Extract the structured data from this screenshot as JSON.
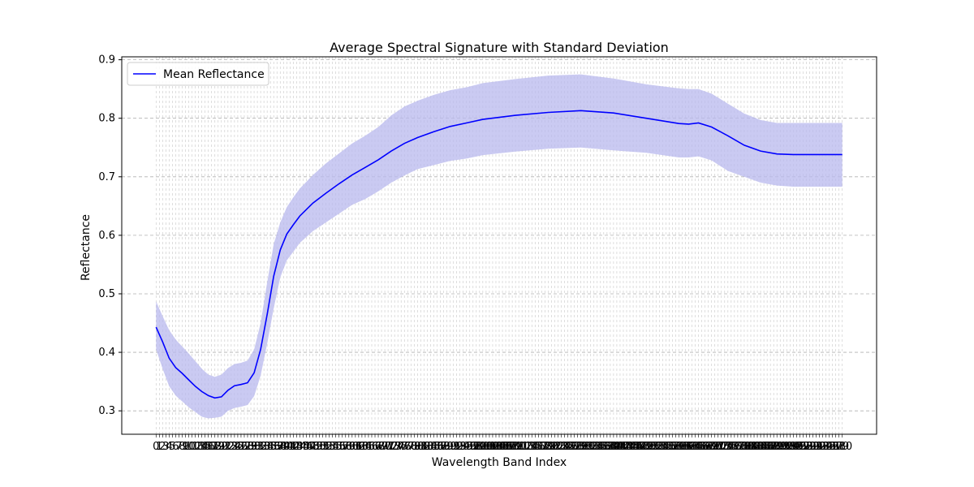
{
  "chart_data": {
    "type": "line",
    "title": "Average Spectral Signature with Standard Deviation",
    "xlabel": "Wavelength Band Index",
    "ylabel": "Reflectance",
    "xlim": [
      -10.5,
      220.5
    ],
    "ylim": [
      0.26,
      0.905
    ],
    "y_ticks": [
      0.3,
      0.4,
      0.5,
      0.6,
      0.7,
      0.8,
      0.9
    ],
    "y_tick_labels": [
      "0.3",
      "0.4",
      "0.5",
      "0.6",
      "0.7",
      "0.8",
      "0.9"
    ],
    "x_band_count": 211,
    "x_band_range": [
      0,
      210
    ],
    "x_tick_labels_note": "overlapping integer labels 0..210 (one per band)",
    "grid": true,
    "legend_position": "upper left",
    "series": [
      {
        "name": "Mean Reflectance",
        "color": "#0000ff",
        "kind": "line",
        "x": [
          0,
          2,
          4,
          6,
          8,
          10,
          12,
          14,
          16,
          18,
          20,
          22,
          24,
          26,
          28,
          30,
          32,
          34,
          36,
          38,
          40,
          42,
          44,
          48,
          52,
          56,
          60,
          64,
          68,
          72,
          76,
          80,
          85,
          90,
          95,
          100,
          110,
          120,
          130,
          140,
          150,
          160,
          163,
          166,
          170,
          175,
          180,
          185,
          190,
          195,
          200,
          205,
          210
        ],
        "y": [
          0.443,
          0.418,
          0.39,
          0.374,
          0.364,
          0.353,
          0.342,
          0.333,
          0.326,
          0.322,
          0.324,
          0.335,
          0.343,
          0.345,
          0.348,
          0.365,
          0.405,
          0.465,
          0.53,
          0.575,
          0.602,
          0.618,
          0.633,
          0.655,
          0.672,
          0.688,
          0.703,
          0.716,
          0.729,
          0.744,
          0.757,
          0.767,
          0.777,
          0.786,
          0.792,
          0.798,
          0.805,
          0.81,
          0.813,
          0.809,
          0.8,
          0.791,
          0.79,
          0.792,
          0.785,
          0.77,
          0.754,
          0.744,
          0.739,
          0.738,
          0.738,
          0.738,
          0.738
        ],
        "upper": [
          0.487,
          0.462,
          0.438,
          0.422,
          0.41,
          0.398,
          0.385,
          0.372,
          0.362,
          0.358,
          0.362,
          0.373,
          0.38,
          0.382,
          0.386,
          0.405,
          0.45,
          0.52,
          0.585,
          0.622,
          0.648,
          0.665,
          0.68,
          0.703,
          0.723,
          0.74,
          0.757,
          0.77,
          0.785,
          0.805,
          0.82,
          0.83,
          0.84,
          0.848,
          0.853,
          0.86,
          0.867,
          0.873,
          0.875,
          0.868,
          0.858,
          0.851,
          0.85,
          0.85,
          0.842,
          0.825,
          0.808,
          0.797,
          0.792,
          0.792,
          0.792,
          0.792,
          0.792
        ],
        "lower": [
          0.405,
          0.372,
          0.342,
          0.326,
          0.316,
          0.306,
          0.298,
          0.29,
          0.287,
          0.288,
          0.29,
          0.3,
          0.305,
          0.307,
          0.31,
          0.325,
          0.36,
          0.415,
          0.475,
          0.528,
          0.557,
          0.572,
          0.587,
          0.607,
          0.622,
          0.637,
          0.652,
          0.662,
          0.675,
          0.69,
          0.702,
          0.713,
          0.72,
          0.727,
          0.731,
          0.737,
          0.743,
          0.748,
          0.75,
          0.745,
          0.741,
          0.733,
          0.733,
          0.735,
          0.728,
          0.71,
          0.7,
          0.69,
          0.685,
          0.683,
          0.683,
          0.683,
          0.683
        ]
      }
    ],
    "band_color": "#b8b8ee",
    "grid_color": "#b0b0b0"
  }
}
